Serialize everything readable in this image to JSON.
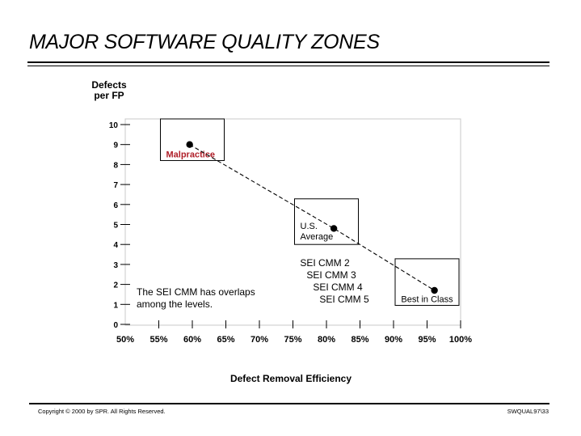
{
  "slide": {
    "title": "MAJOR SOFTWARE QUALITY ZONES",
    "copyright": "Copyright © 2000 by SPR.  All Rights Reserved.",
    "slide_id": "SWQUAL97\\33"
  },
  "chart_data": {
    "type": "line",
    "title": "",
    "xlabel": "Defect Removal Efficiency",
    "ylabel": "Defects per FP",
    "x_tick_labels": [
      "50%",
      "55%",
      "60%",
      "65%",
      "70%",
      "75%",
      "80%",
      "85%",
      "90%",
      "95%",
      "100%"
    ],
    "y_tick_labels": [
      "0",
      "1",
      "2",
      "3",
      "4",
      "5",
      "6",
      "7",
      "8",
      "9",
      "10"
    ],
    "xlim": [
      50,
      100
    ],
    "ylim": [
      0,
      10
    ],
    "grid": false,
    "series": [
      {
        "line_style": "dashed",
        "points": [
          {
            "x": 59.6,
            "y": 9.0
          },
          {
            "x": 81.1,
            "y": 4.8
          },
          {
            "x": 96.1,
            "y": 1.7
          }
        ]
      }
    ],
    "zones": [
      {
        "label": "Malpractice",
        "x_range": [
          55,
          65
        ],
        "y_range": [
          8.2,
          10.0
        ],
        "label_color": "#b0202a"
      },
      {
        "label_lines": [
          "U.S.",
          "Average"
        ],
        "x_range": [
          75,
          85
        ],
        "y_range": [
          4.0,
          6.0
        ]
      },
      {
        "label": "Best in Class",
        "x_range": [
          90,
          100
        ],
        "y_range": [
          0.95,
          3.0
        ]
      }
    ],
    "annotations": [
      {
        "lines": [
          "SEI CMM 2",
          "SEI CMM 3",
          "SEI CMM 4",
          "SEI CMM 5"
        ]
      },
      {
        "lines": [
          "The SEI CMM has overlaps",
          "among the levels."
        ]
      }
    ]
  }
}
